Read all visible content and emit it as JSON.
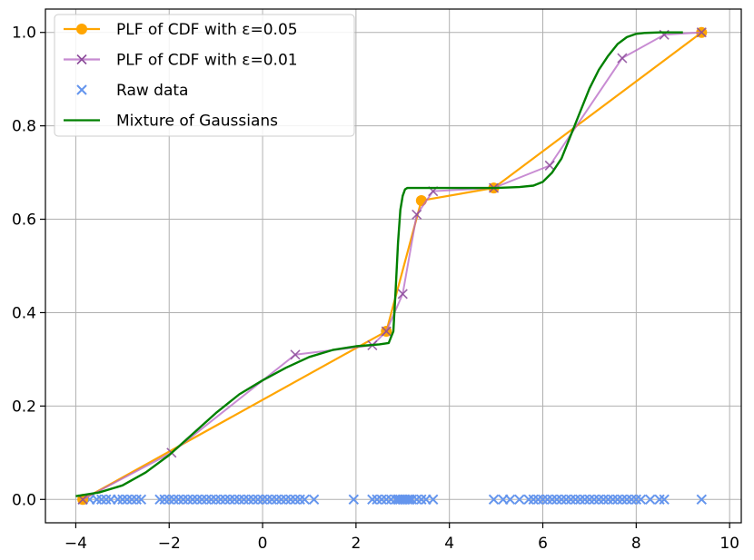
{
  "chart_data": {
    "type": "line",
    "title": "",
    "xlabel": "",
    "ylabel": "",
    "xlim": [
      -4.65,
      10.25
    ],
    "ylim": [
      -0.05,
      1.05
    ],
    "xticks": [
      -4,
      -2,
      0,
      2,
      4,
      6,
      8,
      10
    ],
    "yticks": [
      0.0,
      0.2,
      0.4,
      0.6,
      0.8,
      1.0
    ],
    "xtick_labels": [
      "−4",
      "−2",
      "0",
      "2",
      "4",
      "6",
      "8",
      "10"
    ],
    "ytick_labels": [
      "0.0",
      "0.2",
      "0.4",
      "0.6",
      "0.8",
      "1.0"
    ],
    "grid": true,
    "legend_position": "top-left",
    "series": [
      {
        "name": "PLF of CDF with ε=0.05",
        "kind": "line",
        "color": "#ffa500",
        "marker": "circle",
        "x": [
          -3.85,
          2.65,
          3.4,
          4.95,
          9.4
        ],
        "y": [
          0.0,
          0.36,
          0.64,
          0.667,
          1.0
        ]
      },
      {
        "name": "PLF of CDF with ε=0.01",
        "kind": "line",
        "color": "#b565c4",
        "marker": "x",
        "x": [
          -3.85,
          -1.95,
          0.7,
          2.35,
          2.65,
          3.0,
          3.3,
          3.65,
          4.95,
          6.15,
          7.7,
          8.6,
          9.4
        ],
        "y": [
          0.0,
          0.1,
          0.31,
          0.33,
          0.36,
          0.44,
          0.61,
          0.66,
          0.667,
          0.715,
          0.945,
          0.995,
          1.0
        ]
      },
      {
        "name": "Raw data",
        "kind": "scatter",
        "color": "#6495ed",
        "marker": "x",
        "x": [
          -3.85,
          -3.7,
          -3.55,
          -3.45,
          -3.35,
          -3.25,
          -3.1,
          -3.0,
          -2.9,
          -2.8,
          -2.7,
          -2.6,
          -2.2,
          -2.1,
          -2.0,
          -1.9,
          -1.8,
          -1.7,
          -1.6,
          -1.5,
          -1.4,
          -1.3,
          -1.2,
          -1.1,
          -1.0,
          -0.9,
          -0.8,
          -0.7,
          -0.6,
          -0.5,
          -0.4,
          -0.3,
          -0.2,
          -0.1,
          0.0,
          0.1,
          0.2,
          0.3,
          0.4,
          0.5,
          0.6,
          0.7,
          0.8,
          0.9,
          1.1,
          1.95,
          2.35,
          2.45,
          2.55,
          2.65,
          2.75,
          2.85,
          2.9,
          2.95,
          3.0,
          3.05,
          3.1,
          3.15,
          3.2,
          3.3,
          3.4,
          3.5,
          3.65,
          4.95,
          5.15,
          5.3,
          5.5,
          5.7,
          5.8,
          5.9,
          6.0,
          6.1,
          6.2,
          6.3,
          6.4,
          6.5,
          6.6,
          6.7,
          6.8,
          6.9,
          7.0,
          7.1,
          7.2,
          7.3,
          7.4,
          7.5,
          7.6,
          7.7,
          7.8,
          7.9,
          8.0,
          8.1,
          8.3,
          8.5,
          8.6,
          9.4
        ],
        "y": [
          0,
          0,
          0,
          0,
          0,
          0,
          0,
          0,
          0,
          0,
          0,
          0,
          0,
          0,
          0,
          0,
          0,
          0,
          0,
          0,
          0,
          0,
          0,
          0,
          0,
          0,
          0,
          0,
          0,
          0,
          0,
          0,
          0,
          0,
          0,
          0,
          0,
          0,
          0,
          0,
          0,
          0,
          0,
          0,
          0,
          0,
          0,
          0,
          0,
          0,
          0,
          0,
          0,
          0,
          0,
          0,
          0,
          0,
          0,
          0,
          0,
          0,
          0,
          0,
          0,
          0,
          0,
          0,
          0,
          0,
          0,
          0,
          0,
          0,
          0,
          0,
          0,
          0,
          0,
          0,
          0,
          0,
          0,
          0,
          0,
          0,
          0,
          0,
          0,
          0,
          0,
          0,
          0,
          0,
          0,
          0
        ]
      },
      {
        "name": "Mixture of Gaussians",
        "kind": "line",
        "color": "#008000",
        "marker": "none",
        "x": [
          -4.0,
          -3.5,
          -3.0,
          -2.5,
          -2.0,
          -1.5,
          -1.0,
          -0.5,
          0.0,
          0.5,
          1.0,
          1.5,
          2.0,
          2.5,
          2.7,
          2.8,
          2.85,
          2.9,
          2.95,
          3.0,
          3.05,
          3.1,
          3.2,
          3.3,
          3.5,
          4.0,
          5.0,
          5.5,
          5.8,
          6.0,
          6.2,
          6.4,
          6.6,
          6.8,
          7.0,
          7.2,
          7.4,
          7.6,
          7.8,
          8.0,
          8.2,
          8.5,
          9.0
        ],
        "y": [
          0.007,
          0.015,
          0.03,
          0.058,
          0.095,
          0.14,
          0.185,
          0.225,
          0.255,
          0.282,
          0.305,
          0.32,
          0.328,
          0.332,
          0.335,
          0.36,
          0.45,
          0.55,
          0.62,
          0.65,
          0.664,
          0.667,
          0.667,
          0.667,
          0.667,
          0.667,
          0.667,
          0.669,
          0.672,
          0.68,
          0.7,
          0.73,
          0.78,
          0.83,
          0.88,
          0.92,
          0.95,
          0.975,
          0.99,
          0.997,
          0.999,
          1.0,
          1.0
        ]
      }
    ]
  }
}
